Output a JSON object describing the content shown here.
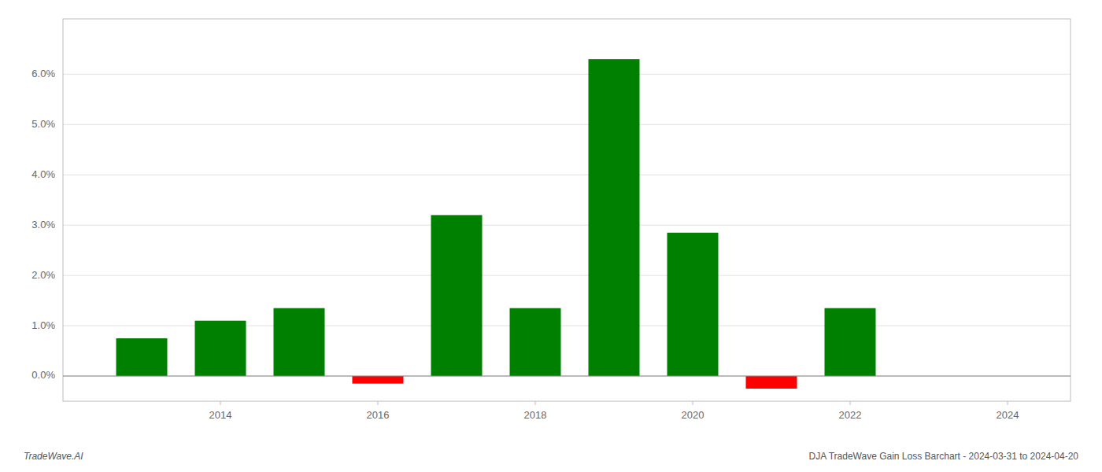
{
  "chart_data": {
    "type": "bar",
    "title": "DJA TradeWave Gain Loss Barchart - 2024-03-31 to 2024-04-20",
    "annotations": [
      "TradeWave.AI"
    ],
    "x": [
      2013,
      2014,
      2015,
      2016,
      2017,
      2018,
      2019,
      2020,
      2021,
      2022,
      2023
    ],
    "values": [
      0.0075,
      0.011,
      0.0135,
      -0.0015,
      0.032,
      0.0135,
      0.063,
      0.0285,
      -0.0025,
      0.0135,
      0.0
    ],
    "colors": [
      "#008000",
      "#008000",
      "#008000",
      "#ff0000",
      "#008000",
      "#008000",
      "#008000",
      "#008000",
      "#ff0000",
      "#008000",
      "#ffffff"
    ],
    "xlim": [
      2012.0,
      2024.8
    ],
    "xticks": [
      2014,
      2016,
      2018,
      2020,
      2022,
      2024
    ],
    "ylim": [
      -0.005,
      0.071
    ],
    "yticks": [
      {
        "value": 0.0,
        "label": "0.0%"
      },
      {
        "value": 0.01,
        "label": "1.0%"
      },
      {
        "value": 0.02,
        "label": "2.0%"
      },
      {
        "value": 0.03,
        "label": "3.0%"
      },
      {
        "value": 0.04,
        "label": "4.0%"
      },
      {
        "value": 0.05,
        "label": "5.0%"
      },
      {
        "value": 0.06,
        "label": "6.0%"
      }
    ],
    "grid": true
  }
}
